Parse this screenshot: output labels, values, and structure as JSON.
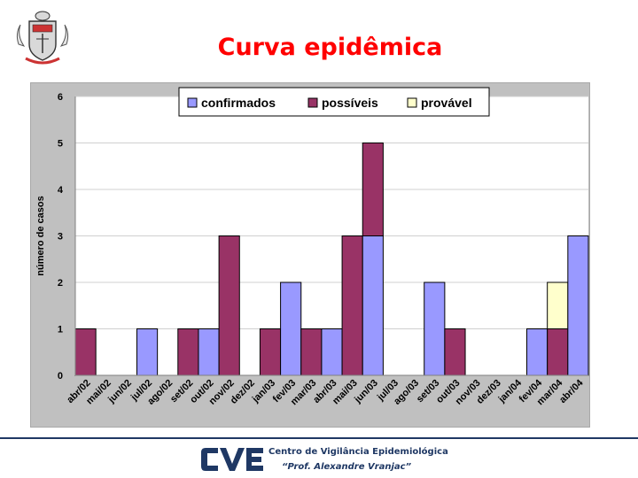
{
  "slide": {
    "title": "Curva epidêmica"
  },
  "footer": {
    "logo_text": "CVE",
    "org_name": "Centro de Vigilância Epidemiológica",
    "org_sub": "“Prof. Alexandre Vranjac”"
  },
  "colors": {
    "title": "#ff0000",
    "confirmados": "#9999ff",
    "possiveis": "#993366",
    "provavel": "#ffffcc",
    "plot_bg": "#ffffff",
    "frame_bg": "#c0c0c0",
    "footer_blue": "#1f3864"
  },
  "chart_data": {
    "type": "bar",
    "stacked": true,
    "title": "",
    "xlabel": "",
    "ylabel": "número de casos",
    "ylim": [
      0,
      6
    ],
    "yticks": [
      0,
      1,
      2,
      3,
      4,
      5,
      6
    ],
    "grid": true,
    "legend_position": "top",
    "categories": [
      "abr/02",
      "mai/02",
      "jun/02",
      "jul/02",
      "ago/02",
      "set/02",
      "out/02",
      "nov/02",
      "dez/02",
      "jan/03",
      "fev/03",
      "mar/03",
      "abr/03",
      "mai/03",
      "jun/03",
      "jul/03",
      "ago/03",
      "set/03",
      "out/03",
      "nov/03",
      "dez/03",
      "jan/04",
      "fev/04",
      "mar/04",
      "abr/04"
    ],
    "category_count": 25,
    "series": [
      {
        "name": "confirmados",
        "color": "#9999ff",
        "values": [
          0,
          0,
          0,
          1,
          0,
          0,
          1,
          0,
          0,
          0,
          2,
          0,
          1,
          0,
          3,
          0,
          0,
          2,
          0,
          0,
          0,
          0,
          1,
          0,
          3
        ]
      },
      {
        "name": "possíveis",
        "color": "#993366",
        "values": [
          1,
          0,
          0,
          0,
          0,
          1,
          0,
          3,
          0,
          1,
          0,
          1,
          0,
          3,
          2,
          0,
          0,
          0,
          1,
          0,
          0,
          0,
          0,
          1,
          0
        ]
      },
      {
        "name": "provável",
        "color": "#ffffcc",
        "values": [
          0,
          0,
          0,
          0,
          0,
          0,
          0,
          0,
          0,
          0,
          0,
          0,
          0,
          0,
          0,
          0,
          0,
          0,
          0,
          0,
          0,
          0,
          0,
          1,
          0
        ]
      }
    ]
  }
}
